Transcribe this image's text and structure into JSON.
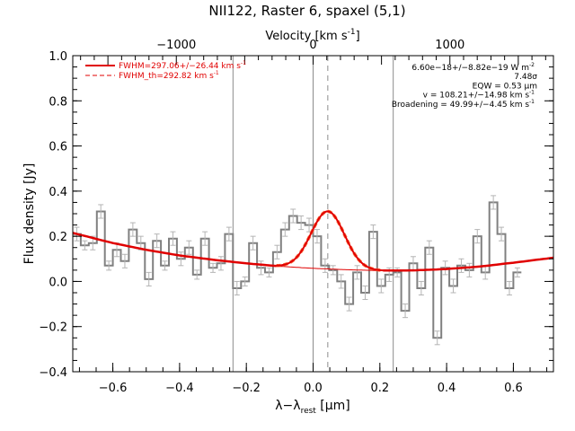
{
  "chart_data": {
    "type": "line",
    "title": "NII122, Raster 6, spaxel (5,1)",
    "xlabel": "λ−λ",
    "xlabel_sub": "rest",
    "xlabel_unit": " [μm]",
    "ylabel": "Flux density [Jy]",
    "top_axis_label": "Velocity [km s",
    "top_axis_sup": "-1",
    "top_axis_close": "]",
    "xlim": [
      -0.72,
      0.72
    ],
    "ylim": [
      -0.4,
      1.0
    ],
    "top_axis_range_kms": [
      -1757,
      1757
    ],
    "x_ticks": [
      -0.6,
      -0.4,
      -0.2,
      0.0,
      0.2,
      0.4,
      0.6
    ],
    "x_tick_labels": [
      "−0.6",
      "−0.4",
      "−0.2",
      "0.0",
      "0.2",
      "0.4",
      "0.6"
    ],
    "y_ticks": [
      -0.4,
      -0.2,
      0.0,
      0.2,
      0.4,
      0.6,
      0.8,
      1.0
    ],
    "y_tick_labels": [
      "−0.4",
      "−0.2",
      "0.0",
      "0.2",
      "0.4",
      "0.6",
      "0.8",
      "1.0"
    ],
    "top_ticks_kms": [
      -1000,
      0,
      1000
    ],
    "top_tick_labels": [
      "−1000",
      "0",
      "1000"
    ],
    "vertical_lines_solid": [
      -0.24,
      0.0,
      0.24
    ],
    "vertical_line_dashed": 0.044,
    "legend": {
      "placement": "top-left",
      "entries": [
        {
          "text": "FWHM=297.06+/−26.44 km s",
          "sup": "-1",
          "style": "solid"
        },
        {
          "text": "FWHM_th=292.82 km s",
          "sup": "-1",
          "style": "dashed"
        }
      ]
    },
    "annotations": {
      "placement": "top-right",
      "lines": [
        {
          "text": "6.60e−18+/−8.82e−19 W m",
          "sup": "-2"
        },
        {
          "text": "7.48σ",
          "sup": ""
        },
        {
          "text": "EQW = 0.53 μm",
          "sup": ""
        },
        {
          "text": "v = 108.21+/−14.98 km s",
          "sup": "-1"
        },
        {
          "text": "Broadening = 49.99+/−4.45 km s",
          "sup": "-1"
        }
      ]
    },
    "data_series": {
      "name": "spectrum",
      "style": "steps",
      "color": "#808080",
      "x_start": -0.72,
      "x_step": 0.024,
      "values": [
        0.21,
        0.16,
        0.17,
        0.31,
        0.07,
        0.14,
        0.09,
        0.23,
        0.17,
        0.01,
        0.18,
        0.07,
        0.19,
        0.1,
        0.15,
        0.03,
        0.19,
        0.06,
        0.08,
        0.21,
        -0.03,
        0.0,
        0.17,
        0.06,
        0.04,
        0.13,
        0.23,
        0.29,
        0.26,
        0.25,
        0.2,
        0.07,
        0.05,
        0.0,
        -0.1,
        0.04,
        -0.05,
        0.22,
        -0.02,
        0.03,
        0.04,
        -0.13,
        0.08,
        -0.03,
        0.15,
        -0.25,
        0.06,
        -0.02,
        0.07,
        0.05,
        0.2,
        0.04,
        0.35,
        0.21,
        -0.03,
        0.04
      ],
      "errors": [
        0.03,
        0.02,
        0.03,
        0.03,
        0.02,
        0.03,
        0.03,
        0.03,
        0.03,
        0.03,
        0.03,
        0.02,
        0.03,
        0.03,
        0.03,
        0.02,
        0.03,
        0.02,
        0.03,
        0.03,
        0.03,
        0.02,
        0.03,
        0.03,
        0.02,
        0.03,
        0.03,
        0.03,
        0.03,
        0.03,
        0.03,
        0.03,
        0.02,
        0.03,
        0.03,
        0.03,
        0.03,
        0.03,
        0.03,
        0.03,
        0.02,
        0.03,
        0.03,
        0.03,
        0.03,
        0.03,
        0.03,
        0.03,
        0.03,
        0.03,
        0.03,
        0.03,
        0.03,
        0.03,
        0.03,
        0.02
      ]
    },
    "baseline": {
      "color": "#e00000",
      "x": [
        -0.72,
        -0.6,
        -0.5,
        -0.4,
        -0.3,
        -0.2,
        -0.1,
        0.0,
        0.1,
        0.2,
        0.3,
        0.4,
        0.5,
        0.6,
        0.72
      ],
      "y": [
        0.215,
        0.17,
        0.14,
        0.115,
        0.096,
        0.08,
        0.067,
        0.058,
        0.052,
        0.048,
        0.049,
        0.055,
        0.066,
        0.083,
        0.105
      ]
    },
    "gauss_fit": {
      "color": "#e00000",
      "amplitude_jy": 0.255,
      "center_um": 0.044,
      "sigma_um": 0.05,
      "range_um": [
        -0.11,
        0.21
      ]
    }
  }
}
